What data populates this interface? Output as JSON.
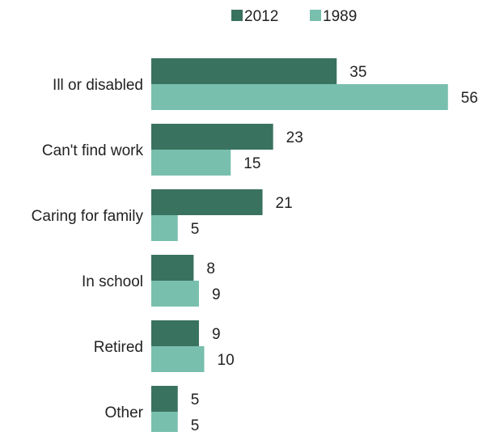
{
  "chart_data": {
    "type": "bar",
    "orientation": "horizontal",
    "title": "",
    "xlabel": "",
    "ylabel": "",
    "categories": [
      "Ill or disabled",
      "Can't find work",
      "Caring for family",
      "In school",
      "Retired",
      "Other"
    ],
    "series": [
      {
        "name": "2012",
        "values": [
          35,
          23,
          21,
          8,
          9,
          5
        ],
        "color": "#3a7260"
      },
      {
        "name": "1989",
        "values": [
          56,
          15,
          5,
          9,
          10,
          5
        ],
        "color": "#79bfae"
      }
    ],
    "xlim": [
      0,
      60
    ],
    "grid": false,
    "legend_position": "top-right",
    "data_labels": true
  }
}
